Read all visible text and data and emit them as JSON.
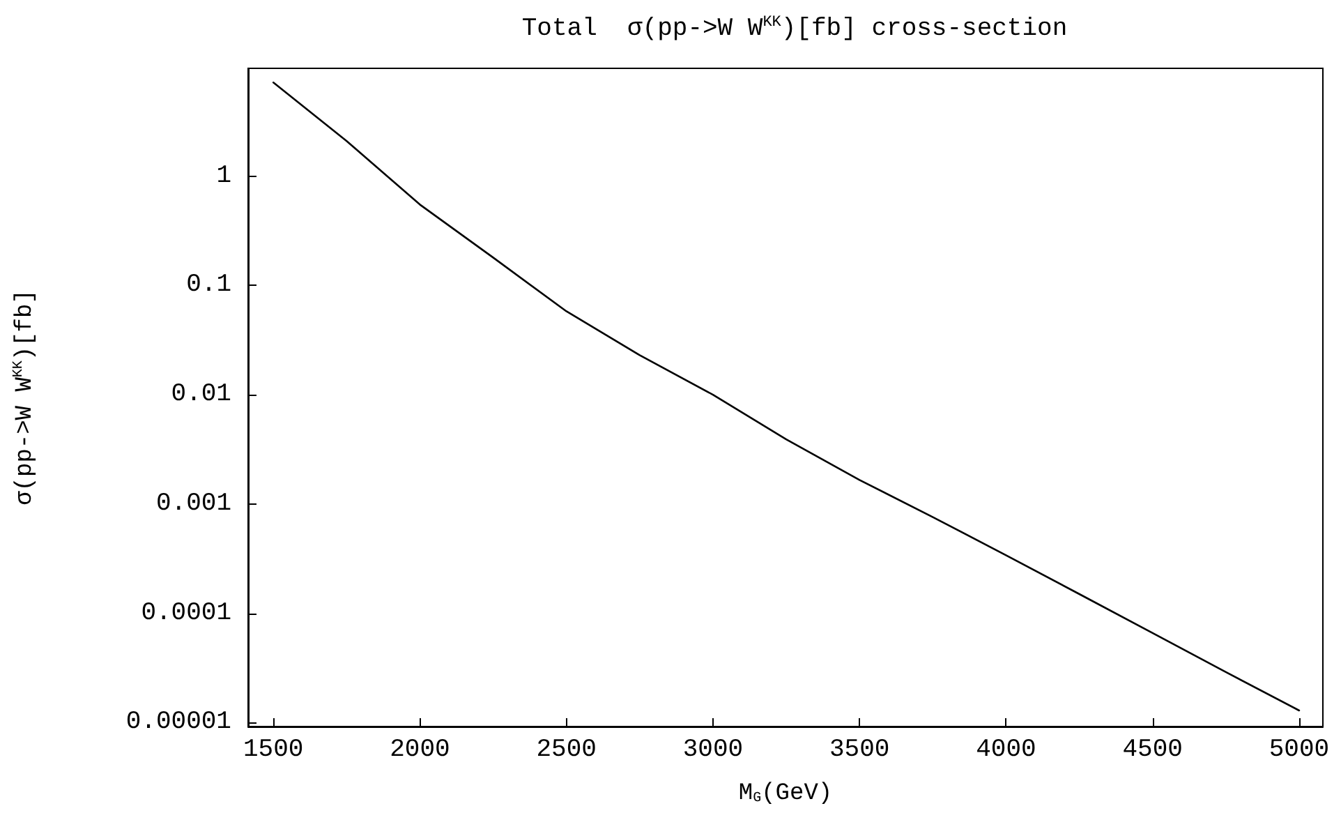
{
  "chart_data": {
    "type": "line",
    "title": "Total  σ(pp->W W$^{KK}$)[fb] cross-section",
    "xlabel": "M$_{G}$(GeV)",
    "ylabel": "σ(pp->W W$^{KK}$)[fb]",
    "x": [
      1500,
      1750,
      2000,
      2250,
      2500,
      2750,
      3000,
      3250,
      3500,
      3750,
      4000,
      4250,
      4500,
      4750,
      5000
    ],
    "series": [
      {
        "color": "#000000",
        "values": [
          7.2,
          2.1,
          0.55,
          0.18,
          0.058,
          0.023,
          0.01,
          0.0039,
          0.00166,
          0.00076,
          0.00034,
          0.00015,
          6.6e-05,
          2.9e-05,
          1.29e-05
        ]
      }
    ],
    "log": "y",
    "xlim": [
      1414,
      5081
    ],
    "xticks": [
      1500,
      2000,
      2500,
      3000,
      3500,
      4000,
      4500,
      5000
    ],
    "ylim": [
      9.2e-06,
      9.7
    ],
    "yticks": [
      {
        "value": 1e-05,
        "label": "0.00001"
      },
      {
        "value": 0.0001,
        "label": "0.0001"
      },
      {
        "value": 0.001,
        "label": "0.001"
      },
      {
        "value": 0.01,
        "label": "0.01"
      },
      {
        "value": 0.1,
        "label": "0.1"
      },
      {
        "value": 1,
        "label": "1"
      }
    ],
    "grid": false,
    "marker": "none",
    "line_style": "solid"
  }
}
